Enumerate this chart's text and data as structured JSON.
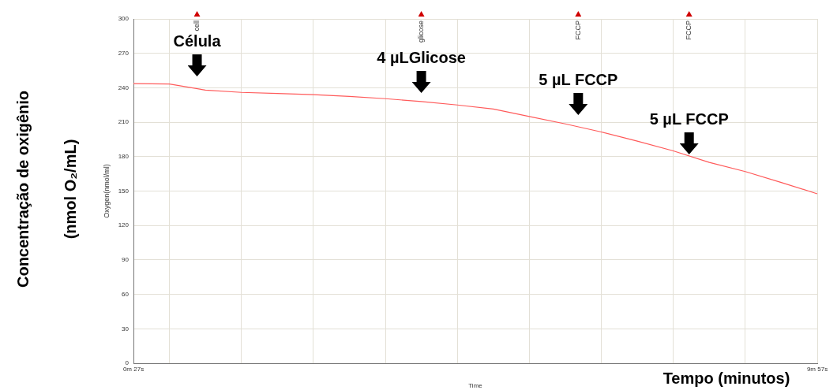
{
  "chart_data": {
    "type": "line",
    "xlabel": "Time",
    "ylabel": "Oxygen(nmol/ml)",
    "categories": [
      "0m 27s",
      null,
      null,
      null,
      null,
      null,
      null,
      null,
      null,
      null,
      null,
      null,
      null,
      null,
      null,
      null,
      null,
      null,
      null,
      "9m 57s"
    ],
    "series": [
      {
        "color": "#ff5a5a",
        "values": [
          243.6,
          243.3,
          238,
          236,
          235,
          234,
          232.5,
          230.5,
          228,
          225,
          221.5,
          215,
          208.5,
          201.5,
          193.5,
          185,
          175,
          167,
          157.5,
          147.6
        ]
      }
    ],
    "ylim": [
      0,
      300
    ],
    "yticks": [
      0,
      30,
      60,
      90,
      120,
      150,
      180,
      210,
      240,
      270,
      300
    ],
    "grid": true,
    "marker": "none",
    "line_style": "solid",
    "legend": false,
    "annotations": [
      "Concentração de oxigênio (nmol O₂/mL)",
      "Tempo (minutos)",
      "cell",
      "glicose",
      "FCCP",
      "FCCP",
      "Célula",
      "4 µLGlicose",
      "5 µL FCCP",
      "5 µL FCCP"
    ]
  }
}
